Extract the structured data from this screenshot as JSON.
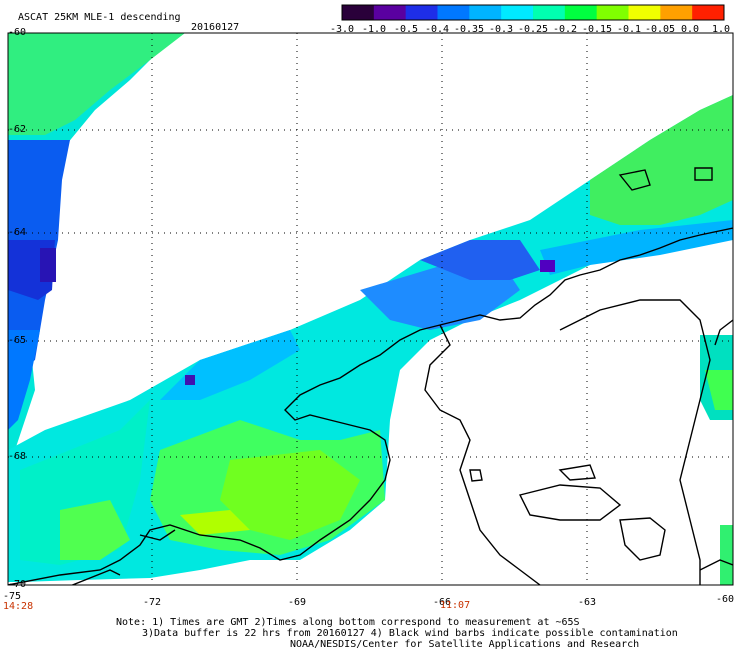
{
  "header": {
    "title": "ASCAT 25KM MLE-1 descending",
    "date": "20160127"
  },
  "colorbar": {
    "labels": [
      "-3.0",
      "-1.0",
      "-0.5",
      "-0.4",
      "-0.35",
      "-0.3",
      "-0.25",
      "-0.2",
      "-0.15",
      "-0.1",
      "-0.05",
      "0.0",
      "1.0"
    ],
    "colors": [
      "#2a003a",
      "#5a00a0",
      "#1e2ee8",
      "#0078ff",
      "#00b4ff",
      "#00eaff",
      "#00ffb0",
      "#00ff40",
      "#80ff00",
      "#f0ff00",
      "#ffa000",
      "#ff2000"
    ]
  },
  "axes": {
    "lat_labels": [
      "-60",
      "-62",
      "-64",
      "-65",
      "-68",
      "-70"
    ],
    "lon_labels": [
      "-75",
      "-72",
      "-69",
      "-66",
      "-63",
      "-60"
    ]
  },
  "times": [
    "14:28",
    "11:07"
  ],
  "footer": {
    "line1": "Note: 1) Times are GMT 2)Times along bottom correspond to measurement at ~65S",
    "line2": "3)Data buffer is 22 hrs from 20160127 4) Black wind barbs indicate possible contamination",
    "line3": "NOAA/NESDIS/Center for Satellite Applications and Research"
  }
}
